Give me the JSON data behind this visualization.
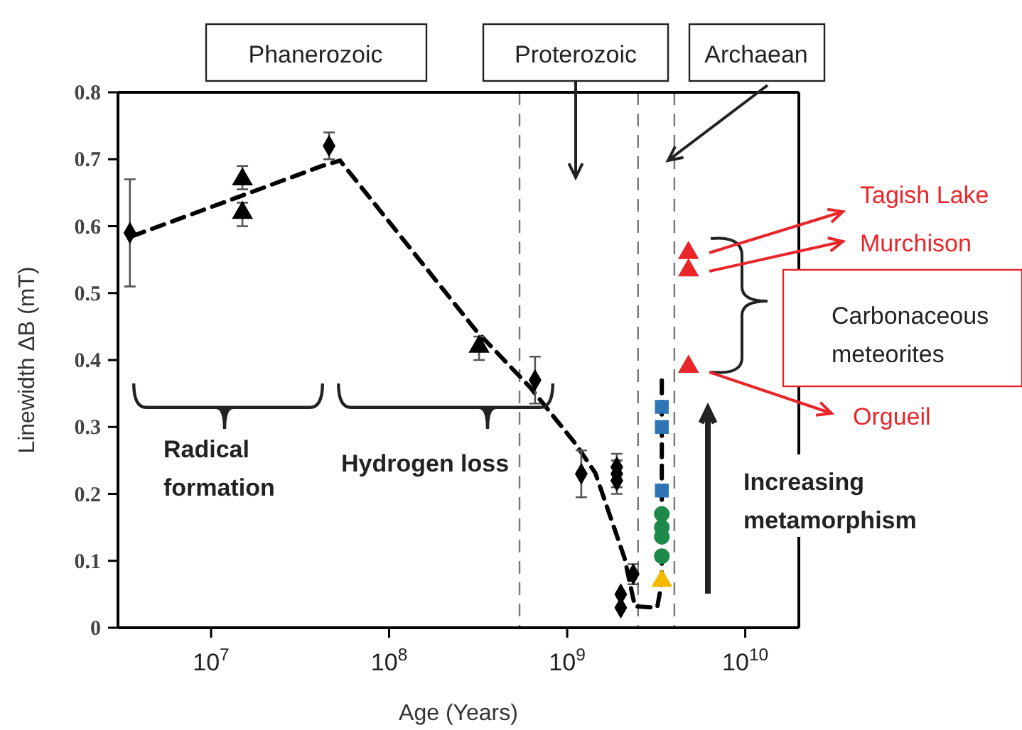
{
  "chart_data": {
    "type": "scatter",
    "xlabel": "Age (Years)",
    "ylabel": "Linewidth ΔB (mT)",
    "log": "x",
    "xlim": [
      3000000,
      20000000000
    ],
    "xticks": [
      {
        "value": 10000000,
        "label": "10$^{7}$"
      },
      {
        "value": 100000000,
        "label": "10$^{8}$"
      },
      {
        "value": 1000000000,
        "label": "10$^{9}$"
      },
      {
        "value": 10000000000,
        "label": "10$^{10}$"
      }
    ],
    "ylim": [
      0,
      0.8
    ],
    "yticks": [
      0,
      0.1,
      0.2,
      0.3,
      0.4,
      0.5,
      0.6,
      0.7,
      0.8
    ],
    "series": [
      {
        "type": "line",
        "line_style": "dashed",
        "marker": "none",
        "color": "#000000",
        "x": [
          3600000,
          14700000,
          42000000,
          53000000,
          310000000,
          620000000,
          1120000000,
          1440000000,
          2100000000,
          2400000000,
          3200000000,
          3400000000,
          3400000000
        ],
        "values": [
          0.585,
          0.645,
          0.69,
          0.698,
          0.443,
          0.359,
          0.274,
          0.231,
          0.104,
          0.032,
          0.03,
          0.068,
          0.372
        ]
      },
      {
        "marker": "diamond",
        "color": "#000000",
        "x": [
          3500000,
          46000000,
          660000000,
          1200000000,
          1900000000,
          1900000000,
          1900000000,
          2350000000,
          2000000000,
          2000000000
        ],
        "values": [
          0.59,
          0.72,
          0.37,
          0.23,
          0.24,
          0.23,
          0.22,
          0.08,
          0.05,
          0.03
        ],
        "errors": [
          [
            0.51,
            0.67
          ],
          [
            0.7,
            0.74
          ],
          [
            0.335,
            0.405
          ],
          [
            0.195,
            0.265
          ],
          [
            0.22,
            0.26
          ],
          [
            0.21,
            0.25
          ],
          [
            0.2,
            0.24
          ],
          [
            0.065,
            0.095
          ],
          null,
          null
        ]
      },
      {
        "marker": "triangle",
        "color": "#000000",
        "x": [
          15000000,
          15000000,
          320000000
        ],
        "values": [
          0.67,
          0.62,
          0.42
        ],
        "errors": [
          [
            0.655,
            0.69
          ],
          [
            0.6,
            0.635
          ],
          [
            0.4,
            0.435
          ]
        ]
      },
      {
        "marker": "square",
        "color": "#2e75b6",
        "x": [
          3400000000,
          3400000000,
          3400000000
        ],
        "values": [
          0.33,
          0.3,
          0.205
        ]
      },
      {
        "marker": "circle",
        "color": "#1e8a4a",
        "x": [
          3400000000,
          3400000000,
          3400000000,
          3400000000
        ],
        "values": [
          0.17,
          0.15,
          0.136,
          0.107
        ]
      },
      {
        "marker": "triangle",
        "color": "#f5b800",
        "x": [
          3400000000
        ],
        "values": [
          0.07
        ]
      },
      {
        "marker": "triangle",
        "color": "#e8262a",
        "x": [
          4800000000,
          4800000000,
          4800000000
        ],
        "values": [
          0.56,
          0.534,
          0.39
        ]
      }
    ],
    "ref_lines": [
      {
        "axis": "x",
        "value": 540000000,
        "color": "#777777",
        "line_style": "dashed"
      },
      {
        "axis": "x",
        "value": 2500000000,
        "color": "#777777",
        "line_style": "dashed"
      },
      {
        "axis": "x",
        "value": 4000000000,
        "color": "#777777",
        "line_style": "dashed"
      }
    ],
    "annotations": [
      "Phanerozoic",
      "Proterozoic",
      "Archaean",
      "Radical formation",
      "Hydrogen loss",
      "Increasing metamorphism",
      "Carbonaceous meteorites",
      "Tagish Lake",
      "Murchison",
      "Orgueil"
    ]
  }
}
